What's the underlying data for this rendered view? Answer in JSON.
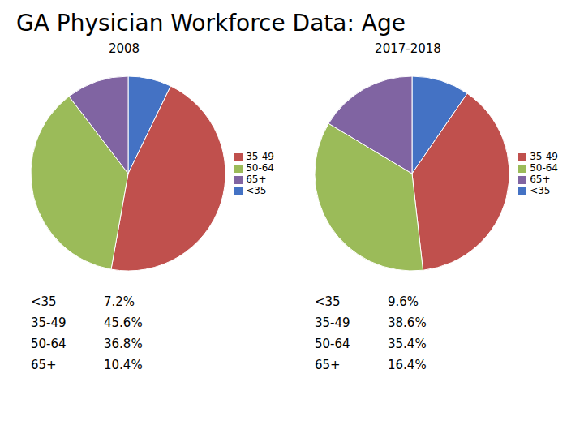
{
  "title": "GA Physician Workforce Data: Age",
  "chart_data": [
    {
      "type": "pie",
      "title": "2008",
      "categories": [
        "<35",
        "35-49",
        "50-64",
        "65+"
      ],
      "values": [
        7.2,
        45.6,
        36.8,
        10.4
      ],
      "value_labels": [
        "7.2%",
        "45.6%",
        "36.8%",
        "10.4%"
      ],
      "colors": [
        "#4472C4",
        "#C0504D",
        "#9BBB59",
        "#8064A2"
      ],
      "legend": "right"
    },
    {
      "type": "pie",
      "title": "2017-2018",
      "categories": [
        "<35",
        "35-49",
        "50-64",
        "65+"
      ],
      "values": [
        9.6,
        38.6,
        35.4,
        16.4
      ],
      "value_labels": [
        "9.6%",
        "38.6%",
        "35.4%",
        "16.4%"
      ],
      "colors": [
        "#4472C4",
        "#C0504D",
        "#9BBB59",
        "#8064A2"
      ],
      "legend": "right"
    }
  ]
}
